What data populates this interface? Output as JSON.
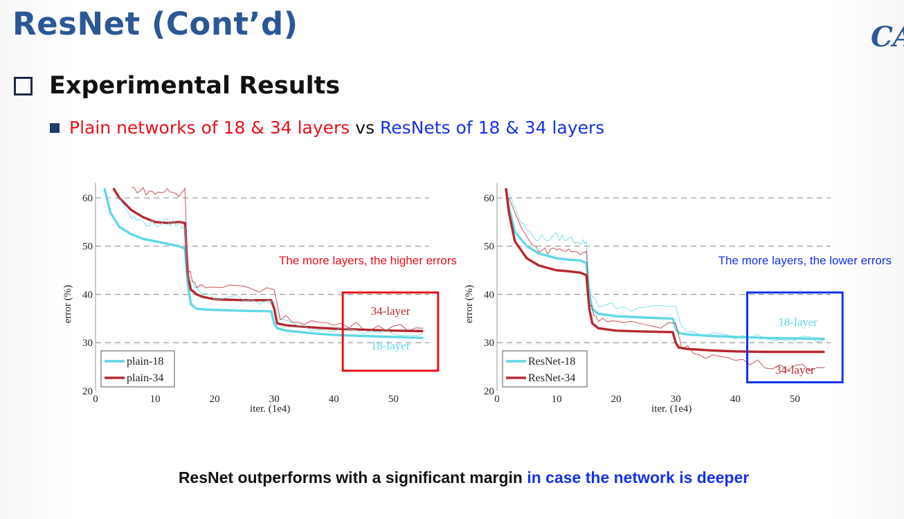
{
  "slide": {
    "title": "ResNet (Cont’d)",
    "logo_text": "CA",
    "section_heading": "Experimental Results",
    "bullet": {
      "part1": "Plain networks of 18 & 34 layers",
      "part2": " vs ",
      "part3": "ResNets of 18 & 34 layers"
    },
    "conclusion": {
      "part1": "ResNet outperforms with a significant margin ",
      "part2": "in case the network is deeper"
    },
    "colors": {
      "title": "#2b5797",
      "red": "#e8101a",
      "blue": "#1432e6",
      "cyan": "#5fd8e6",
      "darkred": "#b5282e"
    }
  },
  "chart_data": [
    {
      "type": "line",
      "xlabel": "iter. (1e4)",
      "ylabel": "error (%)",
      "xlim": [
        0,
        56
      ],
      "ylim": [
        20,
        62
      ],
      "xticks": [
        0,
        10,
        20,
        30,
        40,
        50
      ],
      "yticks": [
        20,
        30,
        40,
        50,
        60
      ],
      "grid": "dashed horizontal",
      "legend_position": "bottom-left",
      "annotation": "The more layers, the higher errors",
      "highlight_box": {
        "color": "#e8101a",
        "x_range": [
          41.5,
          57.5
        ],
        "y_range": [
          24.2,
          40.4
        ]
      },
      "curve_labels": [
        {
          "text": "34-layer",
          "x": 49.5,
          "y": 35.8,
          "color": "#b5282e"
        },
        {
          "text": "18-layer",
          "x": 49.5,
          "y": 28.6,
          "color": "#5fd8e6"
        }
      ],
      "series": [
        {
          "name": "plain-18",
          "color": "#5fd8e6",
          "role": "val",
          "x": [
            1.5,
            2.5,
            4,
            6,
            8,
            10,
            12,
            14,
            15,
            15.5,
            16,
            17,
            20,
            25,
            29.5,
            30,
            30.5,
            32,
            36,
            40,
            45,
            50,
            55
          ],
          "y": [
            62,
            57,
            54,
            52.5,
            51.5,
            51,
            50.5,
            50,
            49.5,
            42,
            38,
            37,
            36.8,
            36.6,
            36.5,
            34,
            33,
            32.5,
            32,
            31.6,
            31.4,
            31.2,
            31
          ]
        },
        {
          "name": "plain-34",
          "color": "#b5282e",
          "role": "val",
          "x": [
            3,
            4,
            6,
            8,
            10,
            12,
            14,
            15,
            15.5,
            16,
            17,
            18,
            20,
            25,
            29.5,
            30,
            30.5,
            32,
            36,
            40,
            45,
            50,
            55
          ],
          "y": [
            62,
            60,
            57.5,
            56,
            55,
            54.8,
            55,
            54.8,
            44,
            41,
            40,
            39.5,
            39,
            38.8,
            38.8,
            37,
            34,
            33.6,
            33.2,
            32.9,
            32.7,
            32.5,
            32.4
          ]
        },
        {
          "name": "plain-18 train",
          "color": "#5fd8e6",
          "role": "train",
          "x": [
            4,
            6,
            8,
            10,
            12,
            14,
            15,
            15.5,
            17,
            20,
            25,
            30,
            31,
            35,
            40,
            45,
            50,
            55
          ],
          "y": [
            60,
            56,
            55,
            54.5,
            55,
            54.5,
            54,
            44,
            41,
            39.5,
            39,
            38.5,
            34.5,
            33,
            32.5,
            32.2,
            32,
            31.8
          ]
        },
        {
          "name": "plain-34 train",
          "color": "#b5282e",
          "role": "train",
          "x": [
            6,
            8,
            10,
            12,
            14,
            15,
            15.5,
            17,
            20,
            25,
            30,
            31,
            35,
            40,
            45,
            50,
            55
          ],
          "y": [
            62,
            61.5,
            61,
            61.5,
            60.5,
            62,
            45,
            42,
            41,
            41.5,
            41,
            35,
            34.5,
            33.8,
            33.5,
            33.2,
            33
          ]
        }
      ]
    },
    {
      "type": "line",
      "xlabel": "iter. (1e4)",
      "ylabel": "error (%)",
      "xlim": [
        0,
        56
      ],
      "ylim": [
        20,
        62
      ],
      "xticks": [
        0,
        10,
        20,
        30,
        40,
        50
      ],
      "yticks": [
        20,
        30,
        40,
        50,
        60
      ],
      "grid": "dashed horizontal",
      "legend_position": "bottom-left",
      "annotation": "The more layers, the lower errors",
      "highlight_box": {
        "color": "#1432e6",
        "x_range": [
          42,
          58
        ],
        "y_range": [
          21.8,
          40.4
        ]
      },
      "curve_labels": [
        {
          "text": "18-layer",
          "x": 50.5,
          "y": 33.5,
          "color": "#5fd8e6"
        },
        {
          "text": "34-layer",
          "x": 50,
          "y": 23.6,
          "color": "#b5282e"
        }
      ],
      "series": [
        {
          "name": "ResNet-18",
          "color": "#5fd8e6",
          "role": "val",
          "x": [
            1.5,
            2,
            3,
            5,
            7,
            10,
            12,
            14,
            15,
            15.5,
            16,
            17,
            20,
            25,
            29.5,
            30,
            30.5,
            32,
            36,
            40,
            45,
            50,
            55
          ],
          "y": [
            62,
            58,
            53,
            50,
            48.5,
            47.5,
            47.2,
            47,
            46.5,
            40,
            37,
            36,
            35.5,
            35.2,
            35,
            33,
            32,
            31.7,
            31.4,
            31.2,
            31,
            30.9,
            30.8
          ]
        },
        {
          "name": "ResNet-34",
          "color": "#b5282e",
          "role": "val",
          "x": [
            1.5,
            2,
            3,
            5,
            7,
            10,
            12,
            14,
            15,
            15.5,
            16,
            17,
            20,
            25,
            29.5,
            30,
            30.5,
            32,
            36,
            40,
            45,
            50,
            55
          ],
          "y": [
            62,
            57,
            51,
            47.5,
            46,
            45,
            44.8,
            44.5,
            44,
            37,
            34,
            33,
            32.5,
            32.3,
            32.2,
            30,
            29,
            28.7,
            28.4,
            28.2,
            28.1,
            28.1,
            28.1
          ]
        },
        {
          "name": "ResNet-18 train",
          "color": "#5fd8e6",
          "role": "train",
          "x": [
            2,
            4,
            6,
            8,
            10,
            12,
            14,
            15,
            15.5,
            17,
            20,
            25,
            30,
            31,
            35,
            40,
            45,
            50,
            55
          ],
          "y": [
            61,
            55,
            52,
            51.5,
            52,
            51.5,
            51,
            51,
            41,
            38,
            37.5,
            37,
            37.5,
            33,
            31.5,
            31.2,
            31,
            30.8,
            30.6
          ]
        },
        {
          "name": "ResNet-34 train",
          "color": "#b5282e",
          "role": "train",
          "x": [
            2,
            4,
            6,
            8,
            10,
            12,
            14,
            15,
            15.5,
            17,
            20,
            25,
            30,
            31,
            35,
            40,
            45,
            50,
            55
          ],
          "y": [
            60,
            54,
            50,
            49,
            49.5,
            49,
            48.5,
            49,
            38,
            35,
            34,
            33.5,
            34,
            29,
            27.5,
            26.5,
            25.5,
            25,
            24.8
          ]
        }
      ]
    }
  ]
}
